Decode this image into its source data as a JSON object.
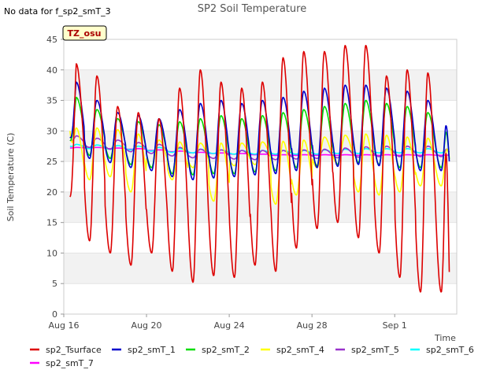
{
  "chart_data": {
    "type": "line",
    "title": "SP2 Soil Temperature",
    "no_data_note": "No data for f_sp2_smT_3",
    "site_badge": "TZ_osu",
    "xlabel": "Time",
    "ylabel": "Soil Temperature (C)",
    "xlim": [
      0,
      19
    ],
    "ylim": [
      0,
      45
    ],
    "y_ticks": [
      0,
      5,
      10,
      15,
      20,
      25,
      30,
      35,
      40,
      45
    ],
    "x_ticks": [
      {
        "value": 0,
        "label": "Aug 16"
      },
      {
        "value": 4,
        "label": "Aug 20"
      },
      {
        "value": 8,
        "label": "Aug 24"
      },
      {
        "value": 12,
        "label": "Aug 28"
      },
      {
        "value": 16,
        "label": "Sep 1"
      }
    ],
    "legend": "bottom",
    "series": [
      {
        "name": "sp2_Tsurface",
        "color": "#dd0000",
        "daily_min": [
          19,
          12,
          10,
          8,
          10,
          7,
          5.2,
          6.3,
          6,
          8,
          7,
          10.8,
          14,
          15,
          12.5,
          10,
          6,
          3.6
        ],
        "daily_max": [
          41,
          39,
          34,
          33,
          32,
          37,
          40,
          38,
          37,
          38,
          42,
          43,
          43,
          44,
          44,
          39,
          40,
          39.5
        ],
        "start_value": 19.2,
        "end_value": 5.2
      },
      {
        "name": "sp2_smT_1",
        "color": "#0000cc",
        "daily_min": [
          26.5,
          25.5,
          24.8,
          24,
          23.5,
          22.5,
          22,
          22.3,
          22.5,
          22.8,
          23,
          23.5,
          24,
          24.2,
          24.5,
          24.3,
          23.5,
          23.5
        ],
        "daily_max": [
          38,
          35,
          33,
          32.5,
          32,
          33.5,
          34.5,
          35,
          34.5,
          35,
          35.5,
          36.5,
          37,
          37.5,
          37.5,
          37,
          36.5,
          35
        ],
        "start_value": 29,
        "end_value": 24.5
      },
      {
        "name": "sp2_smT_2",
        "color": "#00dd00",
        "daily_min": [
          27,
          26,
          25.5,
          24.5,
          24,
          23,
          22.8,
          23,
          23,
          23.3,
          23.5,
          24,
          24.3,
          24.5,
          24.8,
          24.5,
          24,
          24
        ],
        "daily_max": [
          35.5,
          33.5,
          32,
          31.5,
          31,
          31.5,
          32,
          32.5,
          32,
          32.5,
          33,
          33.5,
          34,
          34.5,
          35,
          34.5,
          34,
          33
        ],
        "start_value": 28.5,
        "end_value": 25
      },
      {
        "name": "sp2_smT_4",
        "color": "#ffff00",
        "daily_min": [
          20.5,
          22,
          22.5,
          20,
          24,
          22,
          24,
          18.5,
          24.3,
          24.5,
          18,
          19.5,
          24,
          24.5,
          20,
          19.5,
          20,
          21
        ],
        "daily_max": [
          30.5,
          30.5,
          30.2,
          29.5,
          28.5,
          28.2,
          28,
          28,
          28,
          28.2,
          28.3,
          28.5,
          29,
          29.3,
          29.5,
          29.3,
          29,
          28.8
        ],
        "start_value": 30,
        "end_value": 25.5
      },
      {
        "name": "sp2_smT_5",
        "color": "#9933cc",
        "daily_min": [
          27.6,
          27.3,
          27,
          26.6,
          26.3,
          25.9,
          25.6,
          25.5,
          25.4,
          25.3,
          25.3,
          25.4,
          25.5,
          25.6,
          25.7,
          25.8,
          25.8,
          25.8
        ],
        "daily_max": [
          29.2,
          28.8,
          28.5,
          28.1,
          27.8,
          27.3,
          27,
          26.9,
          26.8,
          26.8,
          26.8,
          26.9,
          27,
          27.2,
          27.4,
          27.5,
          27.5,
          27.5
        ],
        "start_value": 28.5,
        "end_value": 26.5
      },
      {
        "name": "sp2_smT_6",
        "color": "#00ffff",
        "daily_min": [
          27.2,
          27.1,
          27,
          26.9,
          26.7,
          26.5,
          26.4,
          26.3,
          26.2,
          26.2,
          26.2,
          26.2,
          26.2,
          26.3,
          26.3,
          26.4,
          26.4,
          26.4
        ],
        "daily_max": [
          27.8,
          27.7,
          27.6,
          27.5,
          27.3,
          27.1,
          27,
          26.9,
          26.8,
          26.8,
          26.8,
          26.8,
          26.9,
          27,
          27.1,
          27.1,
          27.1,
          27.1
        ],
        "start_value": 27.5,
        "end_value": 26.8
      },
      {
        "name": "sp2_smT_7",
        "color": "#ff00ff",
        "daily_min": [
          27.2,
          27.2,
          27.1,
          27,
          26.8,
          26.6,
          26.4,
          26.3,
          26.2,
          26.1,
          26,
          26,
          26,
          26,
          26,
          26,
          26,
          26
        ],
        "daily_max": [
          27.3,
          27.3,
          27.2,
          27.1,
          26.9,
          26.7,
          26.5,
          26.4,
          26.3,
          26.2,
          26.1,
          26.1,
          26.1,
          26.1,
          26.1,
          26.1,
          26.1,
          26.1
        ],
        "start_value": 27.2,
        "end_value": 26
      }
    ]
  }
}
